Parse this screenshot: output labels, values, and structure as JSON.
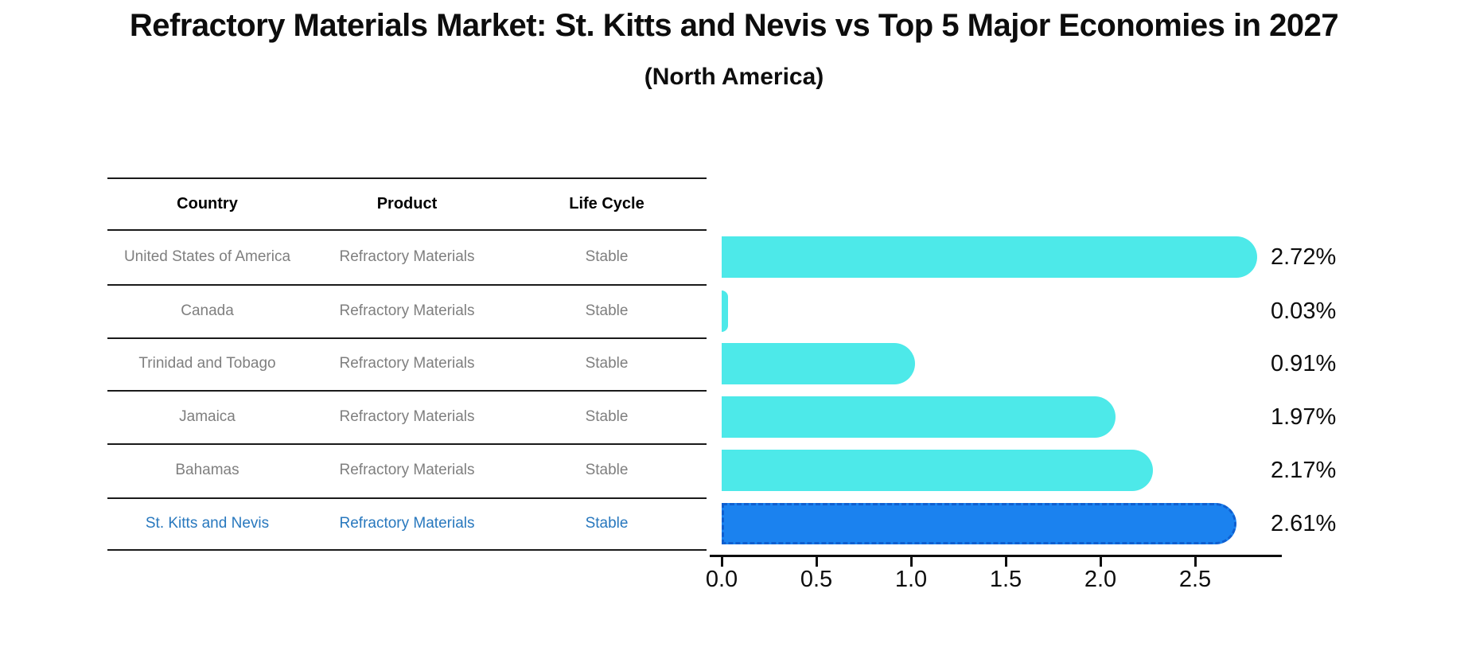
{
  "page": {
    "title": "Refractory Materials Market: St. Kitts and Nevis vs Top 5 Major Economies in 2027",
    "subtitle": "(North America)"
  },
  "table": {
    "headers": [
      "Country",
      "Product",
      "Life Cycle"
    ],
    "rows": [
      {
        "country": "United States of America",
        "product": "Refractory Materials",
        "life_cycle": "Stable",
        "highlighted": false
      },
      {
        "country": "Canada",
        "product": "Refractory Materials",
        "life_cycle": "Stable",
        "highlighted": false
      },
      {
        "country": "Trinidad and Tobago",
        "product": "Refractory Materials",
        "life_cycle": "Stable",
        "highlighted": false
      },
      {
        "country": "Jamaica",
        "product": "Refractory Materials",
        "life_cycle": "Stable",
        "highlighted": false
      },
      {
        "country": "Bahamas",
        "product": "Refractory Materials",
        "life_cycle": "Stable",
        "highlighted": false
      },
      {
        "country": "St. Kitts and Nevis",
        "product": "Refractory Materials",
        "life_cycle": "Stable",
        "highlighted": true
      }
    ]
  },
  "chart_data": {
    "type": "bar",
    "orientation": "horizontal",
    "title": "Refractory Materials Market: St. Kitts and Nevis vs Top 5 Major Economies in 2027",
    "subtitle": "(North America)",
    "categories": [
      "United States of America",
      "Canada",
      "Trinidad and Tobago",
      "Jamaica",
      "Bahamas",
      "St. Kitts and Nevis"
    ],
    "values": [
      2.72,
      0.03,
      0.91,
      1.97,
      2.17,
      2.61
    ],
    "value_labels": [
      "2.72%",
      "0.03%",
      "0.91%",
      "1.97%",
      "2.17%",
      "2.61%"
    ],
    "x_ticks": [
      "0.0",
      "0.5",
      "1.0",
      "1.5",
      "2.0",
      "2.5"
    ],
    "x_tick_values": [
      0.0,
      0.5,
      1.0,
      1.5,
      2.0,
      2.5
    ],
    "xlim": [
      0,
      2.95
    ],
    "grid": false,
    "legend": null,
    "highlight_index": 5,
    "colors": {
      "bar_fill": "#4DE9E9",
      "highlight_fill": "#1B82EF",
      "highlight_edge": "#0F5FD0",
      "highlight_text": "#2878BE",
      "row_text": "#7F7F7F",
      "header_text": "#000000",
      "axis": "#0D0D0D"
    }
  }
}
